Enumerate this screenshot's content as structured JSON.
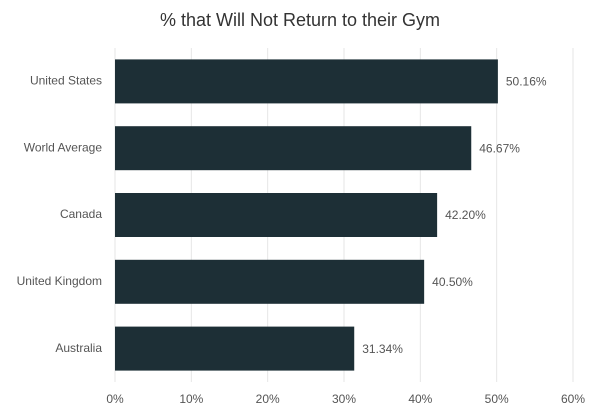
{
  "chart_data": {
    "type": "bar",
    "orientation": "horizontal",
    "title": "% that Will Not Return to their Gym",
    "categories": [
      "United States",
      "World Average",
      "Canada",
      "United Kingdom",
      "Australia"
    ],
    "values": [
      50.16,
      46.67,
      42.2,
      40.5,
      31.34
    ],
    "value_labels": [
      "50.16%",
      "46.67%",
      "42.20%",
      "40.50%",
      "31.34%"
    ],
    "color": "#1d2f36",
    "xlim": [
      0,
      60
    ],
    "xticks": [
      {
        "value": 0,
        "label": "0%"
      },
      {
        "value": 10,
        "label": "10%"
      },
      {
        "value": 20,
        "label": "20%"
      },
      {
        "value": 30,
        "label": "30%"
      },
      {
        "value": 40,
        "label": "40%"
      },
      {
        "value": 50,
        "label": "50%"
      },
      {
        "value": 60,
        "label": "60%"
      }
    ],
    "grid": true
  }
}
